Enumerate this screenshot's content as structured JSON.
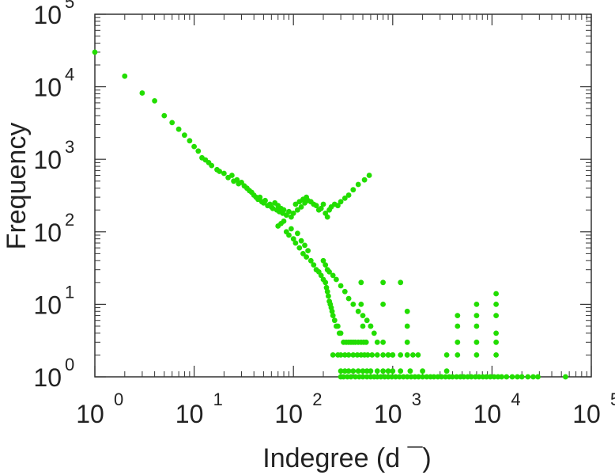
{
  "chart_data": {
    "type": "scatter",
    "title": "",
    "xlabel": "Indegree (d  ¯)",
    "ylabel": "Frequency",
    "xscale": "log",
    "yscale": "log",
    "xlim": [
      1,
      100000
    ],
    "ylim": [
      1,
      100000
    ],
    "x_tick_labels": [
      {
        "base": "10",
        "exp": "0"
      },
      {
        "base": "10",
        "exp": "1"
      },
      {
        "base": "10",
        "exp": "2"
      },
      {
        "base": "10",
        "exp": "3"
      },
      {
        "base": "10",
        "exp": "4"
      },
      {
        "base": "10",
        "exp": "5"
      }
    ],
    "y_tick_labels": [
      {
        "base": "10",
        "exp": "0"
      },
      {
        "base": "10",
        "exp": "1"
      },
      {
        "base": "10",
        "exp": "2"
      },
      {
        "base": "10",
        "exp": "3"
      },
      {
        "base": "10",
        "exp": "4"
      },
      {
        "base": "10",
        "exp": "5"
      }
    ],
    "grid": false,
    "marker_color": "#22dd00",
    "axis_color": "#333333",
    "points": [
      [
        1,
        30000
      ],
      [
        2,
        14000
      ],
      [
        3,
        8200
      ],
      [
        4,
        6400
      ],
      [
        5,
        4000
      ],
      [
        6,
        3200
      ],
      [
        7,
        2600
      ],
      [
        8,
        2150
      ],
      [
        9,
        1800
      ],
      [
        10,
        1500
      ],
      [
        11,
        1300
      ],
      [
        12,
        1050
      ],
      [
        13,
        980
      ],
      [
        14,
        900
      ],
      [
        15,
        820
      ],
      [
        17,
        720
      ],
      [
        18,
        680
      ],
      [
        20,
        640
      ],
      [
        22,
        560
      ],
      [
        24,
        600
      ],
      [
        25,
        500
      ],
      [
        27,
        520
      ],
      [
        28,
        460
      ],
      [
        30,
        480
      ],
      [
        32,
        430
      ],
      [
        34,
        400
      ],
      [
        36,
        370
      ],
      [
        38,
        350
      ],
      [
        40,
        320
      ],
      [
        42,
        300
      ],
      [
        44,
        280
      ],
      [
        46,
        300
      ],
      [
        48,
        260
      ],
      [
        50,
        250
      ],
      [
        52,
        270
      ],
      [
        55,
        230
      ],
      [
        58,
        240
      ],
      [
        60,
        220
      ],
      [
        62,
        210
      ],
      [
        65,
        250
      ],
      [
        68,
        200
      ],
      [
        70,
        230
      ],
      [
        72,
        190
      ],
      [
        75,
        210
      ],
      [
        78,
        180
      ],
      [
        80,
        200
      ],
      [
        85,
        170
      ],
      [
        90,
        190
      ],
      [
        95,
        160
      ],
      [
        100,
        180
      ],
      [
        105,
        240
      ],
      [
        110,
        200
      ],
      [
        115,
        260
      ],
      [
        120,
        220
      ],
      [
        125,
        280
      ],
      [
        130,
        250
      ],
      [
        135,
        300
      ],
      [
        140,
        270
      ],
      [
        150,
        260
      ],
      [
        160,
        240
      ],
      [
        170,
        230
      ],
      [
        180,
        200
      ],
      [
        190,
        210
      ],
      [
        200,
        240
      ],
      [
        210,
        180
      ],
      [
        220,
        160
      ],
      [
        230,
        200
      ],
      [
        240,
        220
      ],
      [
        260,
        240
      ],
      [
        280,
        230
      ],
      [
        300,
        260
      ],
      [
        330,
        290
      ],
      [
        360,
        320
      ],
      [
        400,
        380
      ],
      [
        450,
        450
      ],
      [
        520,
        520
      ],
      [
        580,
        600
      ],
      [
        70,
        120
      ],
      [
        75,
        130
      ],
      [
        80,
        140
      ],
      [
        85,
        100
      ],
      [
        90,
        90
      ],
      [
        95,
        110
      ],
      [
        100,
        80
      ],
      [
        105,
        70
      ],
      [
        110,
        95
      ],
      [
        115,
        60
      ],
      [
        120,
        75
      ],
      [
        125,
        50
      ],
      [
        130,
        65
      ],
      [
        135,
        45
      ],
      [
        140,
        55
      ],
      [
        150,
        40
      ],
      [
        160,
        35
      ],
      [
        170,
        30
      ],
      [
        180,
        28
      ],
      [
        190,
        25
      ],
      [
        200,
        22
      ],
      [
        210,
        20
      ],
      [
        215,
        17
      ],
      [
        220,
        15
      ],
      [
        225,
        13
      ],
      [
        230,
        11
      ],
      [
        235,
        10
      ],
      [
        240,
        9
      ],
      [
        245,
        8
      ],
      [
        250,
        7
      ],
      [
        260,
        6
      ],
      [
        270,
        5
      ],
      [
        280,
        5
      ],
      [
        290,
        4
      ],
      [
        300,
        4
      ],
      [
        320,
        3
      ],
      [
        340,
        3
      ],
      [
        360,
        3
      ],
      [
        380,
        3
      ],
      [
        400,
        3
      ],
      [
        420,
        3
      ],
      [
        450,
        3
      ],
      [
        480,
        3
      ],
      [
        510,
        3
      ],
      [
        540,
        3
      ],
      [
        250,
        2
      ],
      [
        280,
        2
      ],
      [
        300,
        2
      ],
      [
        330,
        2
      ],
      [
        360,
        2
      ],
      [
        400,
        2
      ],
      [
        440,
        2
      ],
      [
        480,
        2
      ],
      [
        520,
        2
      ],
      [
        560,
        2
      ],
      [
        620,
        2
      ],
      [
        700,
        2
      ],
      [
        800,
        2
      ],
      [
        900,
        2
      ],
      [
        1000,
        2
      ],
      [
        1200,
        2
      ],
      [
        1400,
        2
      ],
      [
        1600,
        2
      ],
      [
        1800,
        2
      ],
      [
        300,
        1.2
      ],
      [
        330,
        1.2
      ],
      [
        360,
        1.2
      ],
      [
        400,
        1.2
      ],
      [
        450,
        1.2
      ],
      [
        500,
        1.2
      ],
      [
        550,
        1.2
      ],
      [
        600,
        1.2
      ],
      [
        700,
        1.2
      ],
      [
        800,
        1.2
      ],
      [
        900,
        1.2
      ],
      [
        1000,
        1.2
      ],
      [
        1200,
        1.2
      ],
      [
        1500,
        1.2
      ],
      [
        2000,
        1.2
      ],
      [
        200,
        40
      ],
      [
        210,
        35
      ],
      [
        220,
        30
      ],
      [
        230,
        28
      ],
      [
        250,
        25
      ],
      [
        270,
        22
      ],
      [
        300,
        18
      ],
      [
        330,
        15
      ],
      [
        360,
        12
      ],
      [
        400,
        10
      ],
      [
        450,
        8
      ],
      [
        500,
        7
      ],
      [
        550,
        6
      ],
      [
        600,
        5
      ],
      [
        650,
        4
      ],
      [
        700,
        3
      ],
      [
        800,
        3
      ],
      [
        900,
        2
      ],
      [
        1000,
        2
      ],
      [
        480,
        20
      ],
      [
        800,
        20
      ],
      [
        1200,
        20
      ],
      [
        480,
        10
      ],
      [
        800,
        10
      ],
      [
        500,
        5
      ],
      [
        600,
        5
      ],
      [
        1400,
        8
      ],
      [
        1400,
        5
      ],
      [
        1400,
        3
      ],
      [
        1400,
        2
      ],
      [
        3500,
        2
      ],
      [
        3500,
        1.2
      ],
      [
        4500,
        2
      ],
      [
        4500,
        3
      ],
      [
        4500,
        5
      ],
      [
        4500,
        7
      ],
      [
        7000,
        2
      ],
      [
        7000,
        3
      ],
      [
        7000,
        5
      ],
      [
        7000,
        7
      ],
      [
        7000,
        10
      ],
      [
        11000,
        2
      ],
      [
        11000,
        3
      ],
      [
        11000,
        4
      ],
      [
        11000,
        7
      ],
      [
        11000,
        10
      ],
      [
        11000,
        14
      ],
      [
        300,
        1
      ],
      [
        320,
        1
      ],
      [
        350,
        1
      ],
      [
        380,
        1
      ],
      [
        420,
        1
      ],
      [
        460,
        1
      ],
      [
        500,
        1
      ],
      [
        550,
        1
      ],
      [
        600,
        1
      ],
      [
        650,
        1
      ],
      [
        700,
        1
      ],
      [
        760,
        1
      ],
      [
        830,
        1
      ],
      [
        900,
        1
      ],
      [
        980,
        1
      ],
      [
        1070,
        1
      ],
      [
        1170,
        1
      ],
      [
        1280,
        1
      ],
      [
        1400,
        1
      ],
      [
        1530,
        1
      ],
      [
        1670,
        1
      ],
      [
        1820,
        1
      ],
      [
        2000,
        1
      ],
      [
        2200,
        1
      ],
      [
        2400,
        1
      ],
      [
        2600,
        1
      ],
      [
        2850,
        1
      ],
      [
        3100,
        1
      ],
      [
        3400,
        1
      ],
      [
        3700,
        1
      ],
      [
        4000,
        1
      ],
      [
        4400,
        1
      ],
      [
        4800,
        1
      ],
      [
        5200,
        1
      ],
      [
        5700,
        1
      ],
      [
        6200,
        1
      ],
      [
        6800,
        1
      ],
      [
        7400,
        1
      ],
      [
        8100,
        1
      ],
      [
        8800,
        1
      ],
      [
        9600,
        1
      ],
      [
        10500,
        1
      ],
      [
        11500,
        1
      ],
      [
        12500,
        1
      ],
      [
        14000,
        1
      ],
      [
        16000,
        1
      ],
      [
        18000,
        1
      ],
      [
        20000,
        1
      ],
      [
        23000,
        1
      ],
      [
        26000,
        1
      ],
      [
        29000,
        1
      ],
      [
        55000,
        1
      ]
    ]
  }
}
